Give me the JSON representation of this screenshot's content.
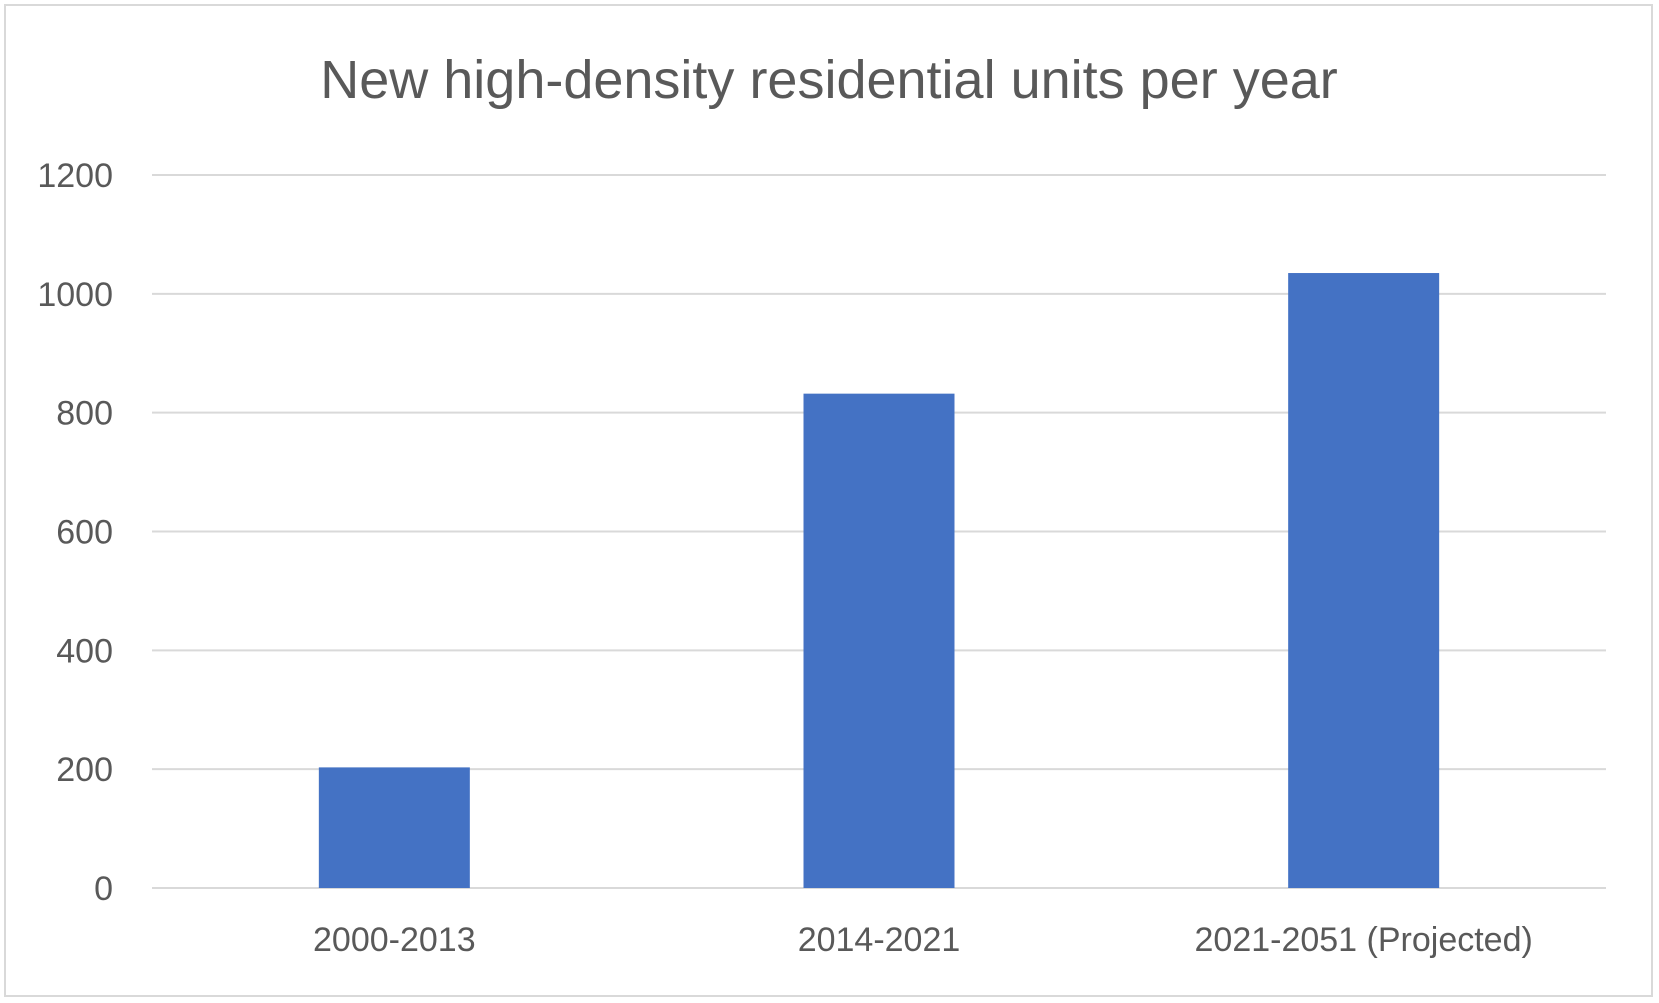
{
  "chart_data": {
    "type": "bar",
    "title": "New high-density residential units per year",
    "xlabel": "",
    "ylabel": "",
    "categories": [
      "2000-2013",
      "2014-2021",
      "2021-2051 (Projected)"
    ],
    "values": [
      203,
      832,
      1035
    ],
    "ylim": [
      0,
      1200
    ],
    "yticks": [
      0,
      200,
      400,
      600,
      800,
      1000,
      1200
    ],
    "ytick_labels": [
      "0",
      "200",
      "400",
      "600",
      "800",
      "1000",
      "1200"
    ],
    "grid": true,
    "legend": "none",
    "colors": {
      "bar": "#4472c4",
      "grid": "#d9d9d9",
      "text": "#595959",
      "frame": "#d9d9d9"
    }
  }
}
